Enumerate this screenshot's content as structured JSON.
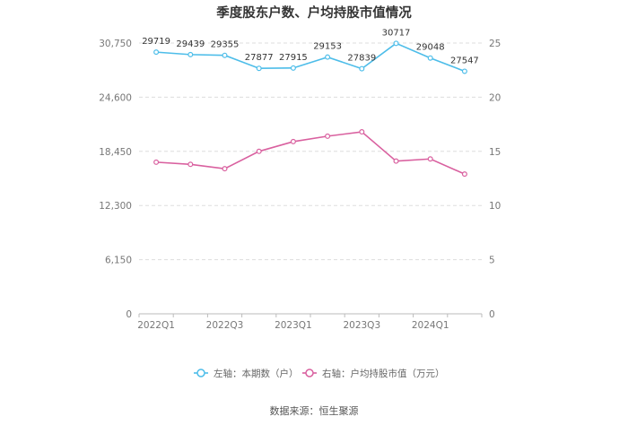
{
  "chart_data": {
    "type": "line",
    "title": "季度股东户数、户均持股市值情况",
    "categories": [
      "2022Q1",
      "2022Q2",
      "2022Q3",
      "2022Q4",
      "2023Q1",
      "2023Q2",
      "2023Q3",
      "2023Q4",
      "2024Q1",
      "2024Q2"
    ],
    "x_tick_labels": [
      "2022Q1",
      "2022Q3",
      "2023Q1",
      "2023Q3",
      "2024Q1"
    ],
    "y_left": {
      "ticks": [
        0,
        6150,
        12300,
        18450,
        24600,
        30750
      ],
      "tick_labels": [
        "0",
        "6,150",
        "12,300",
        "18,450",
        "24,600",
        "30,750"
      ],
      "ylim": [
        0,
        30750
      ]
    },
    "y_right": {
      "ticks": [
        0,
        5,
        10,
        15,
        20,
        25
      ],
      "tick_labels": [
        "0",
        "5",
        "10",
        "15",
        "20",
        "25"
      ],
      "ylim": [
        0,
        25
      ]
    },
    "grid": true,
    "legend_position": "bottom",
    "series": [
      {
        "name": "左轴：本期数（户）",
        "axis": "left",
        "color": "#4dbde9",
        "values": [
          29719,
          29439,
          29355,
          27877,
          27915,
          29153,
          27839,
          30717,
          29048,
          27547
        ],
        "data_labels": [
          "29719",
          "29439",
          "29355",
          "27877",
          "27915",
          "29153",
          "27839",
          "30717",
          "29048",
          "27547"
        ]
      },
      {
        "name": "右轴：户均持股市值（万元）",
        "axis": "right",
        "color": "#d9609f",
        "values": [
          14.0,
          13.8,
          13.4,
          15.0,
          15.9,
          16.4,
          16.8,
          14.1,
          14.3,
          12.9
        ]
      }
    ]
  },
  "source_text": "数据来源：恒生聚源"
}
